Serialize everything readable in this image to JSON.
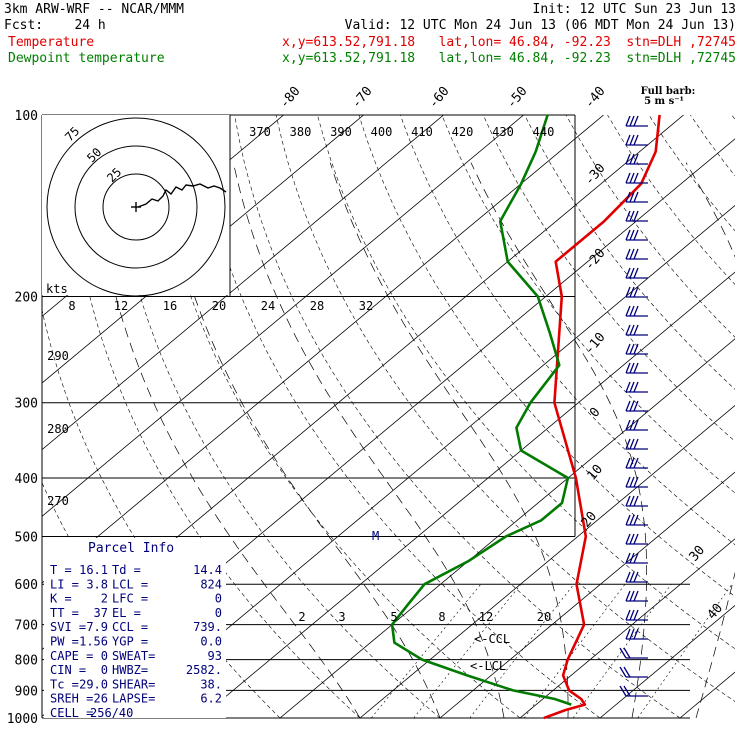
{
  "header": {
    "model": "3km ARW-WRF -- NCAR/MMM",
    "init": "Init: 12 UTC Sun 23 Jun 13",
    "fcst": "Fcst:    24 h",
    "valid": "Valid: 12 UTC Mon 24 Jun 13 (06 MDT Mon 24 Jun 13)",
    "temp_label": "Temperature",
    "temp_loc": "x,y=613.52,791.18   lat,lon= 46.84, -92.23  stn=DLH ,72745",
    "dew_label": "Dewpoint temperature",
    "dew_loc": "x,y=613.52,791.18   lat,lon= 46.84, -92.23  stn=DLH ,72745"
  },
  "colors": {
    "temperature": "#e00000",
    "dewpoint": "#007a00",
    "barbs": "#00007a",
    "index_text": "#00007a"
  },
  "barb_legend": {
    "line1": "Full barb:",
    "line2": "5 m s⁻¹"
  },
  "hodograph": {
    "kts_label": "kts",
    "ring_labels": [
      "75",
      "50",
      "25"
    ],
    "x_ticks": [
      "8",
      "12",
      "16",
      "20",
      "24",
      "28",
      "32"
    ]
  },
  "chart_data": {
    "type": "line",
    "title": "",
    "pressure_levels": [
      "100",
      "200",
      "300",
      "400",
      "500",
      "600",
      "700",
      "800",
      "900",
      "1000"
    ],
    "top_isotherm_labels": [
      "-80",
      "-70",
      "-60",
      "-50",
      "-40"
    ],
    "right_isotherm_labels": [
      "-30",
      "-20",
      "-10",
      "0",
      "10",
      "20",
      "30",
      "40"
    ],
    "theta_e_labels": [
      "370",
      "380",
      "390",
      "400",
      "410",
      "420",
      "430",
      "440"
    ],
    "theta_labels": [
      "290",
      "280",
      "270"
    ],
    "mixing_ratio_labels": [
      "2",
      "3",
      "5",
      "8",
      "12",
      "20"
    ],
    "series": [
      {
        "name": "Temperature",
        "points": [
          [
            1000,
            13
          ],
          [
            970,
            14.5
          ],
          [
            950,
            16.1
          ],
          [
            930,
            14.8
          ],
          [
            900,
            12
          ],
          [
            850,
            9
          ],
          [
            800,
            7.2
          ],
          [
            700,
            4
          ],
          [
            600,
            -3
          ],
          [
            500,
            -9
          ],
          [
            400,
            -19
          ],
          [
            300,
            -33
          ],
          [
            200,
            -48
          ],
          [
            175,
            -54
          ],
          [
            150,
            -54
          ],
          [
            130,
            -55
          ],
          [
            115,
            -58
          ],
          [
            100,
            -63
          ]
        ]
      },
      {
        "name": "Dewpoint temperature",
        "points": [
          [
            950,
            14.4
          ],
          [
            930,
            11.5
          ],
          [
            900,
            5
          ],
          [
            850,
            -3
          ],
          [
            800,
            -11
          ],
          [
            750,
            -17
          ],
          [
            700,
            -20
          ],
          [
            650,
            -21
          ],
          [
            600,
            -22
          ],
          [
            550,
            -20
          ],
          [
            500,
            -19
          ],
          [
            470,
            -17
          ],
          [
            440,
            -17
          ],
          [
            400,
            -20
          ],
          [
            360,
            -30
          ],
          [
            330,
            -34
          ],
          [
            300,
            -36
          ],
          [
            260,
            -38
          ],
          [
            230,
            -44
          ],
          [
            200,
            -51
          ],
          [
            175,
            -60
          ],
          [
            150,
            -67
          ],
          [
            130,
            -70
          ],
          [
            115,
            -73
          ],
          [
            100,
            -77
          ]
        ]
      }
    ]
  },
  "parcel": {
    "title": "Parcel Info",
    "rows": [
      [
        "T   =",
        "16.1",
        "Td  =",
        "14.4"
      ],
      [
        "LI  =",
        "3.8",
        "LCL =",
        "824"
      ],
      [
        "K   =",
        "2",
        "LFC =",
        "0"
      ],
      [
        "TT  =",
        "37",
        "EL  =",
        "0"
      ],
      [
        "SVI =",
        "7.9",
        "CCL =",
        "739."
      ],
      [
        "PW  =",
        "1.56",
        "YGP =",
        "0.0"
      ],
      [
        "CAPE =",
        "0",
        "SWEAT=",
        "93"
      ],
      [
        "CIN =",
        "0",
        "HWBZ=",
        "2582."
      ],
      [
        "Tc  =",
        "29.0",
        "SHEAR=",
        "38."
      ],
      [
        "SREH =",
        "26",
        "LAPSE=",
        "6.2"
      ],
      [
        "CELL =",
        "256/40",
        "",
        ""
      ]
    ]
  },
  "annotations": {
    "ccl": "<-CCL",
    "lcl": "<-LCL",
    "m": "M"
  }
}
